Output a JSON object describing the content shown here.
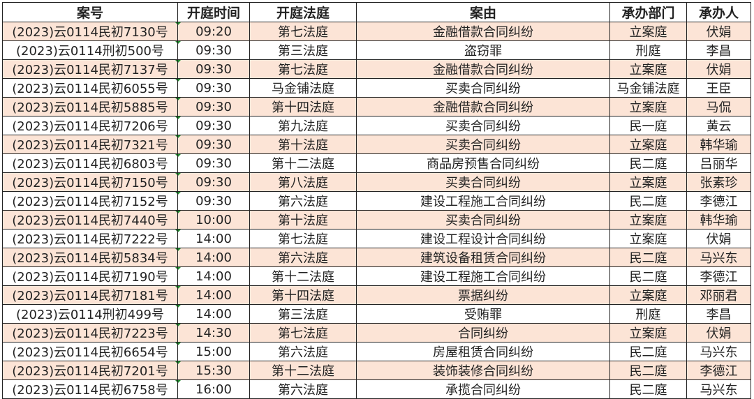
{
  "headers": [
    "案号",
    "开庭时间",
    "开庭法庭",
    "案由",
    "承办部门",
    "承办人"
  ],
  "row_highlight_color": "#fce4d6",
  "rows": [
    [
      "(2023)云0114民初7130号",
      "09:20",
      "第七法庭",
      "金融借款合同纠纷",
      "立案庭",
      "伏娟"
    ],
    [
      "(2023)云0114刑初500号",
      "09:30",
      "第三法庭",
      "盗窃罪",
      "刑庭",
      "李昌"
    ],
    [
      "(2023)云0114民初7137号",
      "09:30",
      "第七法庭",
      "金融借款合同纠纷",
      "立案庭",
      "伏娟"
    ],
    [
      "(2023)云0114民初6055号",
      "09:30",
      "马金铺法庭",
      "买卖合同纠纷",
      "马金铺法庭",
      "王臣"
    ],
    [
      "(2023)云0114民初5885号",
      "09:30",
      "第十四法庭",
      "金融借款合同纠纷",
      "立案庭",
      "马侃"
    ],
    [
      "(2023)云0114民初7206号",
      "09:30",
      "第九法庭",
      "买卖合同纠纷",
      "民一庭",
      "黄云"
    ],
    [
      "(2023)云0114民初7321号",
      "09:30",
      "第十法庭",
      "买卖合同纠纷",
      "立案庭",
      "韩华瑜"
    ],
    [
      "(2023)云0114民初6803号",
      "09:30",
      "第十二法庭",
      "商品房预售合同纠纷",
      "民二庭",
      "吕丽华"
    ],
    [
      "(2023)云0114民初7150号",
      "09:30",
      "第八法庭",
      "买卖合同纠纷",
      "立案庭",
      "张素珍"
    ],
    [
      "(2023)云0114民初7152号",
      "09:30",
      "第六法庭",
      "建设工程施工合同纠纷",
      "民二庭",
      "李德江"
    ],
    [
      "(2023)云0114民初7440号",
      "10:00",
      "第十法庭",
      "买卖合同纠纷",
      "立案庭",
      "韩华瑜"
    ],
    [
      "(2023)云0114民初7222号",
      "14:00",
      "第七法庭",
      "建设工程设计合同纠纷",
      "立案庭",
      "伏娟"
    ],
    [
      "(2023)云0114民初5834号",
      "14:00",
      "第六法庭",
      "建筑设备租赁合同纠纷",
      "民二庭",
      "马兴东"
    ],
    [
      "(2023)云0114民初7190号",
      "14:00",
      "第十二法庭",
      "建设工程施工合同纠纷",
      "民二庭",
      "李德江"
    ],
    [
      "(2023)云0114民初7181号",
      "14:00",
      "第十四法庭",
      "票据纠纷",
      "立案庭",
      "邓丽君"
    ],
    [
      "(2023)云0114刑初499号",
      "14:00",
      "第三法庭",
      "受贿罪",
      "刑庭",
      "李昌"
    ],
    [
      "(2023)云0114民初7223号",
      "14:30",
      "第七法庭",
      "合同纠纷",
      "立案庭",
      "伏娟"
    ],
    [
      "(2023)云0114民初6654号",
      "15:00",
      "第六法庭",
      "房屋租赁合同纠纷",
      "民二庭",
      "马兴东"
    ],
    [
      "(2023)云0114民初7201号",
      "15:30",
      "第十二法庭",
      "装饰装修合同纠纷",
      "民二庭",
      "李德江"
    ],
    [
      "(2023)云0114民初6758号",
      "16:00",
      "第六法庭",
      "承揽合同纠纷",
      "民二庭",
      "马兴东"
    ]
  ]
}
